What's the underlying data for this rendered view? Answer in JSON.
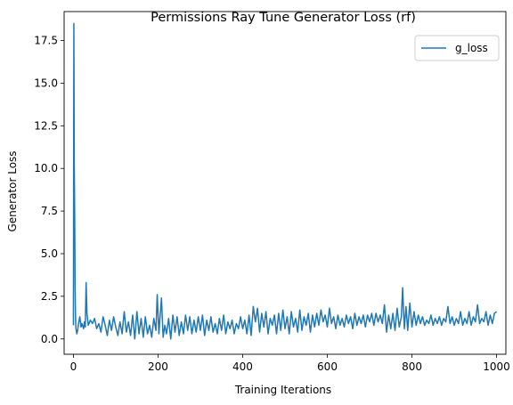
{
  "chart_data": {
    "type": "line",
    "title": "Permissions Ray Tune Generator Loss (rf)",
    "xlabel": "Training Iterations",
    "ylabel": "Generator Loss",
    "xlim": [
      -22,
      1022
    ],
    "ylim": [
      -0.9,
      19.2
    ],
    "xticks": [
      0,
      200,
      400,
      600,
      800,
      1000
    ],
    "xtick_labels": [
      "0",
      "200",
      "400",
      "600",
      "800",
      "1000"
    ],
    "yticks": [
      0.0,
      2.5,
      5.0,
      7.5,
      10.0,
      12.5,
      15.0,
      17.5
    ],
    "ytick_labels": [
      "0.0",
      "2.5",
      "5.0",
      "7.5",
      "10.0",
      "12.5",
      "15.0",
      "17.5"
    ],
    "grid": false,
    "legend": {
      "position": "top-right",
      "entries": [
        {
          "name": "g_loss",
          "color": "#1f77b4"
        }
      ]
    },
    "series": [
      {
        "name": "g_loss",
        "color": "#1f77b4",
        "points": [
          [
            0,
            0.8
          ],
          [
            1,
            18.5
          ],
          [
            2,
            10.2
          ],
          [
            3,
            7.1
          ],
          [
            4,
            2.9
          ],
          [
            5,
            1.2
          ],
          [
            6,
            0.6
          ],
          [
            8,
            0.3
          ],
          [
            10,
            0.5
          ],
          [
            12,
            0.9
          ],
          [
            15,
            1.3
          ],
          [
            18,
            0.7
          ],
          [
            20,
            0.9
          ],
          [
            24,
            0.6
          ],
          [
            26,
            1.0
          ],
          [
            28,
            0.7
          ],
          [
            30,
            3.3
          ],
          [
            32,
            1.5
          ],
          [
            35,
            0.8
          ],
          [
            40,
            1.1
          ],
          [
            45,
            0.9
          ],
          [
            50,
            1.2
          ],
          [
            55,
            0.6
          ],
          [
            60,
            0.9
          ],
          [
            65,
            0.4
          ],
          [
            70,
            1.3
          ],
          [
            75,
            0.8
          ],
          [
            80,
            0.2
          ],
          [
            85,
            1.1
          ],
          [
            90,
            0.5
          ],
          [
            95,
            1.3
          ],
          [
            100,
            0.7
          ],
          [
            105,
            0.2
          ],
          [
            110,
            1.0
          ],
          [
            115,
            0.3
          ],
          [
            120,
            1.6
          ],
          [
            125,
            0.4
          ],
          [
            130,
            1.0
          ],
          [
            135,
            0.2
          ],
          [
            140,
            1.4
          ],
          [
            145,
            0.0
          ],
          [
            150,
            1.6
          ],
          [
            155,
            0.3
          ],
          [
            160,
            1.2
          ],
          [
            165,
            0.1
          ],
          [
            170,
            1.3
          ],
          [
            175,
            0.3
          ],
          [
            180,
            0.8
          ],
          [
            185,
            0.1
          ],
          [
            190,
            1.2
          ],
          [
            195,
            0.5
          ],
          [
            198,
            2.6
          ],
          [
            202,
            0.3
          ],
          [
            205,
            1.4
          ],
          [
            208,
            2.4
          ],
          [
            212,
            0.1
          ],
          [
            216,
            0.8
          ],
          [
            220,
            0.3
          ],
          [
            225,
            1.2
          ],
          [
            230,
            0.0
          ],
          [
            235,
            1.4
          ],
          [
            240,
            0.4
          ],
          [
            245,
            1.3
          ],
          [
            250,
            0.2
          ],
          [
            255,
            1.0
          ],
          [
            260,
            0.3
          ],
          [
            265,
            1.4
          ],
          [
            270,
            0.5
          ],
          [
            275,
            1.3
          ],
          [
            280,
            0.3
          ],
          [
            285,
            1.1
          ],
          [
            290,
            0.4
          ],
          [
            295,
            1.3
          ],
          [
            300,
            0.5
          ],
          [
            305,
            1.4
          ],
          [
            310,
            0.2
          ],
          [
            315,
            1.1
          ],
          [
            320,
            0.5
          ],
          [
            325,
            1.3
          ],
          [
            330,
            0.4
          ],
          [
            335,
            0.9
          ],
          [
            340,
            0.3
          ],
          [
            345,
            1.2
          ],
          [
            350,
            0.5
          ],
          [
            355,
            1.4
          ],
          [
            360,
            0.3
          ],
          [
            365,
            1.0
          ],
          [
            370,
            0.6
          ],
          [
            375,
            1.1
          ],
          [
            380,
            0.3
          ],
          [
            385,
            0.9
          ],
          [
            390,
            0.6
          ],
          [
            395,
            1.3
          ],
          [
            400,
            0.6
          ],
          [
            405,
            1.1
          ],
          [
            410,
            0.3
          ],
          [
            415,
            1.4
          ],
          [
            420,
            0.2
          ],
          [
            425,
            1.9
          ],
          [
            430,
            1.0
          ],
          [
            435,
            1.8
          ],
          [
            440,
            0.4
          ],
          [
            445,
            1.5
          ],
          [
            450,
            0.7
          ],
          [
            455,
            1.6
          ],
          [
            460,
            0.3
          ],
          [
            465,
            1.2
          ],
          [
            470,
            0.8
          ],
          [
            475,
            1.4
          ],
          [
            480,
            0.3
          ],
          [
            485,
            1.5
          ],
          [
            490,
            0.5
          ],
          [
            495,
            1.7
          ],
          [
            500,
            0.6
          ],
          [
            505,
            1.3
          ],
          [
            510,
            0.3
          ],
          [
            515,
            1.6
          ],
          [
            520,
            0.7
          ],
          [
            525,
            1.2
          ],
          [
            530,
            0.4
          ],
          [
            535,
            1.7
          ],
          [
            540,
            0.5
          ],
          [
            545,
            1.3
          ],
          [
            550,
            0.8
          ],
          [
            555,
            1.5
          ],
          [
            560,
            0.4
          ],
          [
            565,
            1.4
          ],
          [
            570,
            0.7
          ],
          [
            575,
            1.5
          ],
          [
            580,
            0.8
          ],
          [
            585,
            1.7
          ],
          [
            590,
            1.0
          ],
          [
            595,
            1.4
          ],
          [
            600,
            0.7
          ],
          [
            605,
            1.8
          ],
          [
            610,
            0.9
          ],
          [
            615,
            1.3
          ],
          [
            620,
            0.6
          ],
          [
            625,
            1.4
          ],
          [
            630,
            0.8
          ],
          [
            635,
            1.2
          ],
          [
            640,
            0.7
          ],
          [
            645,
            1.4
          ],
          [
            650,
            0.9
          ],
          [
            655,
            1.3
          ],
          [
            660,
            0.6
          ],
          [
            665,
            1.5
          ],
          [
            670,
            0.8
          ],
          [
            675,
            1.3
          ],
          [
            680,
            0.9
          ],
          [
            685,
            1.4
          ],
          [
            690,
            0.7
          ],
          [
            695,
            1.4
          ],
          [
            700,
            1.0
          ],
          [
            705,
            1.5
          ],
          [
            710,
            0.8
          ],
          [
            715,
            1.5
          ],
          [
            720,
            1.0
          ],
          [
            725,
            1.4
          ],
          [
            730,
            0.9
          ],
          [
            735,
            2.0
          ],
          [
            740,
            0.4
          ],
          [
            745,
            1.4
          ],
          [
            750,
            0.6
          ],
          [
            755,
            1.5
          ],
          [
            760,
            0.5
          ],
          [
            765,
            1.8
          ],
          [
            770,
            0.7
          ],
          [
            775,
            1.3
          ],
          [
            778,
            3.0
          ],
          [
            782,
            0.6
          ],
          [
            786,
            1.9
          ],
          [
            790,
            0.5
          ],
          [
            795,
            2.1
          ],
          [
            800,
            0.7
          ],
          [
            805,
            1.6
          ],
          [
            810,
            0.8
          ],
          [
            815,
            1.4
          ],
          [
            820,
            0.9
          ],
          [
            825,
            1.3
          ],
          [
            830,
            0.8
          ],
          [
            835,
            1.1
          ],
          [
            840,
            0.9
          ],
          [
            845,
            1.4
          ],
          [
            850,
            0.8
          ],
          [
            855,
            1.2
          ],
          [
            860,
            0.9
          ],
          [
            865,
            1.3
          ],
          [
            870,
            0.8
          ],
          [
            875,
            1.2
          ],
          [
            880,
            1.0
          ],
          [
            885,
            1.9
          ],
          [
            890,
            0.9
          ],
          [
            895,
            1.3
          ],
          [
            900,
            0.8
          ],
          [
            905,
            1.2
          ],
          [
            910,
            0.9
          ],
          [
            915,
            1.6
          ],
          [
            920,
            0.8
          ],
          [
            925,
            1.2
          ],
          [
            930,
            0.9
          ],
          [
            935,
            1.6
          ],
          [
            940,
            0.8
          ],
          [
            945,
            1.3
          ],
          [
            950,
            1.0
          ],
          [
            955,
            2.0
          ],
          [
            960,
            0.9
          ],
          [
            965,
            1.2
          ],
          [
            970,
            1.0
          ],
          [
            975,
            1.6
          ],
          [
            980,
            0.8
          ],
          [
            985,
            1.4
          ],
          [
            990,
            0.9
          ],
          [
            995,
            1.5
          ],
          [
            1000,
            1.6
          ]
        ]
      }
    ]
  }
}
